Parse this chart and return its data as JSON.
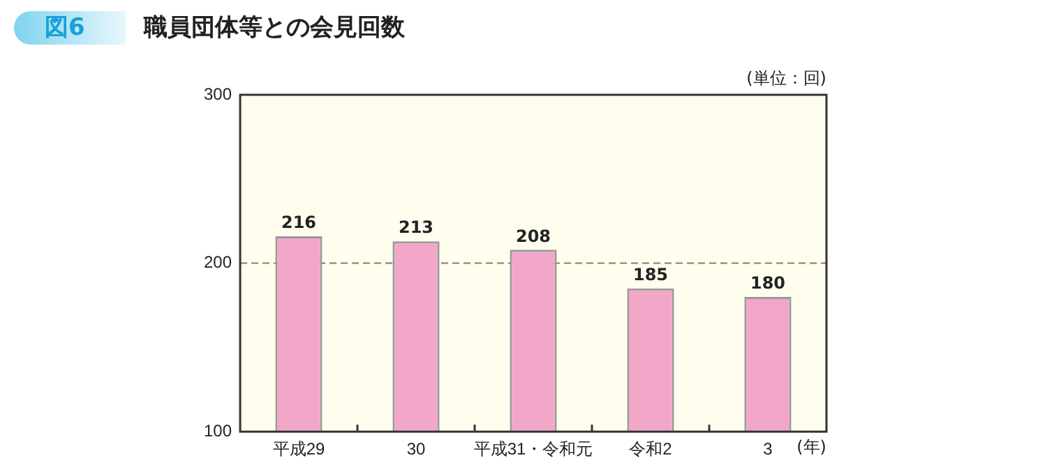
{
  "chart_data": {
    "type": "bar",
    "title": "職員団体等との会見回数",
    "categories": [
      "平成29",
      "30",
      "平成31・令和元",
      "令和2",
      "3"
    ],
    "values": [
      216,
      213,
      208,
      185,
      180
    ],
    "color": "#f2a7c9",
    "ylim": [
      100,
      300
    ],
    "yticks": [
      100,
      200,
      300
    ],
    "data_labels": true,
    "ref_lines": [
      {
        "axis": "y",
        "value": 200,
        "line_style": "dashed",
        "color": "#8a7a60"
      }
    ],
    "annotations": [
      "図6",
      "(単位：回)",
      "(年)"
    ]
  }
}
